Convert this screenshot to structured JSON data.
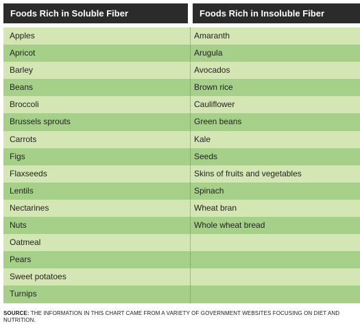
{
  "table": {
    "headers": {
      "soluble": "Foods Rich in Soluble Fiber",
      "insoluble": "Foods Rich in Insoluble Fiber"
    },
    "rows": [
      {
        "soluble": "Apples",
        "insoluble": "Amaranth"
      },
      {
        "soluble": "Apricot",
        "insoluble": "Arugula"
      },
      {
        "soluble": "Barley",
        "insoluble": "Avocados"
      },
      {
        "soluble": "Beans",
        "insoluble": "Brown rice"
      },
      {
        "soluble": "Broccoli",
        "insoluble": "Cauliflower"
      },
      {
        "soluble": "Brussels sprouts",
        "insoluble": "Green beans"
      },
      {
        "soluble": "Carrots",
        "insoluble": "Kale"
      },
      {
        "soluble": "Figs",
        "insoluble": "Seeds"
      },
      {
        "soluble": "Flaxseeds",
        "insoluble": "Skins of fruits and vegetables"
      },
      {
        "soluble": "Lentils",
        "insoluble": "Spinach"
      },
      {
        "soluble": "Nectarines",
        "insoluble": "Wheat bran"
      },
      {
        "soluble": "Nuts",
        "insoluble": "Whole wheat bread"
      },
      {
        "soluble": "Oatmeal",
        "insoluble": ""
      },
      {
        "soluble": "Pears",
        "insoluble": ""
      },
      {
        "soluble": "Sweet potatoes",
        "insoluble": ""
      },
      {
        "soluble": "Turnips",
        "insoluble": ""
      }
    ]
  },
  "source": {
    "label": "SOURCE:",
    "text": " THE INFORMATION IN THIS CHART CAME  FROM A VARIETY OF GOVERNMENT WEBSITES FOCUSING ON DIET AND NUTRITION."
  },
  "colors": {
    "header_bg": "#2b2b2b",
    "row_light": "#d3e6b3",
    "row_dark": "#a6d08a"
  }
}
